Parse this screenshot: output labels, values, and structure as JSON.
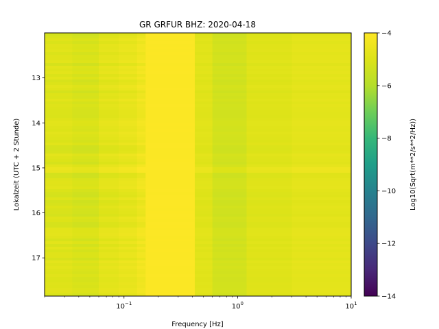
{
  "chart_data": {
    "type": "heatmap",
    "title": "GR GRFUR  BHZ: 2020-04-18",
    "xlabel": "Frequency [Hz]",
    "ylabel": "Lokalzeit (UTC + 2 Stunde)",
    "colorbar_label": "Log10(Sqrt(m**2/s**2/Hz))",
    "x_scale": "log",
    "xlim": [
      0.02,
      10
    ],
    "ylim": [
      17.85,
      12.0
    ],
    "clim": [
      -14,
      -4
    ],
    "colormap": "viridis",
    "x_ticks": [
      {
        "value": 0.1,
        "base": "10",
        "exp": "−1"
      },
      {
        "value": 1,
        "base": "10",
        "exp": "0"
      },
      {
        "value": 10,
        "base": "10",
        "exp": "1"
      }
    ],
    "y_ticks": [
      {
        "value": 13,
        "label": "13"
      },
      {
        "value": 14,
        "label": "14"
      },
      {
        "value": 15,
        "label": "15"
      },
      {
        "value": 16,
        "label": "16"
      },
      {
        "value": 17,
        "label": "17"
      }
    ],
    "colorbar_ticks": [
      {
        "value": -4,
        "label": "−4"
      },
      {
        "value": -6,
        "label": "−6"
      },
      {
        "value": -8,
        "label": "−8"
      },
      {
        "value": -10,
        "label": "−10"
      },
      {
        "value": -12,
        "label": "−12"
      },
      {
        "value": -14,
        "label": "−14"
      }
    ],
    "frequency_bands": [
      {
        "f_min": 0.02,
        "f_max": 0.035,
        "value": -5.0
      },
      {
        "f_min": 0.035,
        "f_max": 0.06,
        "value": -5.15
      },
      {
        "f_min": 0.06,
        "f_max": 0.09,
        "value": -4.85
      },
      {
        "f_min": 0.09,
        "f_max": 0.13,
        "value": -4.7
      },
      {
        "f_min": 0.13,
        "f_max": 0.155,
        "value": -4.45
      },
      {
        "f_min": 0.155,
        "f_max": 0.42,
        "value": -4.05
      },
      {
        "f_min": 0.42,
        "f_max": 0.6,
        "value": -4.9
      },
      {
        "f_min": 0.6,
        "f_max": 1.2,
        "value": -5.3
      },
      {
        "f_min": 1.2,
        "f_max": 3.0,
        "value": -4.95
      },
      {
        "f_min": 3.0,
        "f_max": 10,
        "value": -4.8
      }
    ]
  }
}
